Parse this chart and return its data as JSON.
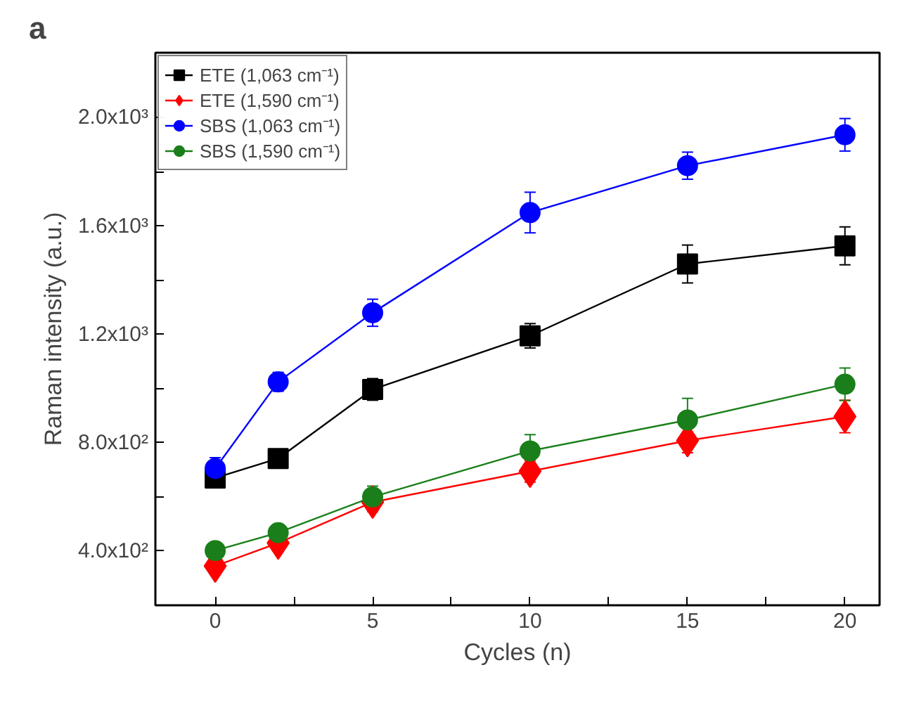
{
  "chart_data": {
    "type": "line",
    "title": "a",
    "xlabel": "Cycles (n)",
    "ylabel": "Raman intensity (a.u.)",
    "x": [
      0,
      2,
      5,
      10,
      15,
      20
    ],
    "series": [
      {
        "name": "ETE (1,063 cm⁻¹)",
        "color": "#000000",
        "marker": "square",
        "values": [
          670,
          742,
          997,
          1195,
          1460,
          1527
        ],
        "errors": [
          30,
          30,
          40,
          45,
          70,
          70
        ]
      },
      {
        "name": "ETE (1,590 cm⁻¹)",
        "color": "#ff0000",
        "marker": "diamond",
        "values": [
          345,
          430,
          581,
          695,
          808,
          897
        ],
        "errors": [
          30,
          30,
          35,
          40,
          45,
          60
        ]
      },
      {
        "name": "SBS (1,063 cm⁻¹)",
        "color": "#0000ff",
        "marker": "circle",
        "values": [
          705,
          1025,
          1280,
          1650,
          1823,
          1937
        ],
        "errors": [
          40,
          35,
          50,
          75,
          50,
          60
        ]
      },
      {
        "name": "SBS (1,590 cm⁻¹)",
        "color": "#1a7f1a",
        "marker": "circle",
        "values": [
          402,
          468,
          600,
          770,
          884,
          1016
        ],
        "errors": [
          30,
          30,
          40,
          60,
          80,
          60
        ]
      }
    ],
    "xlim": [
      -1.9,
      21.1
    ],
    "ylim": [
      200,
      2240
    ],
    "xticks": [
      0,
      {
        "value": 2.5,
        "label": null
      },
      5,
      {
        "value": 7.5,
        "label": null
      },
      10,
      {
        "value": 12.5,
        "label": null
      },
      15,
      {
        "value": 17.5,
        "label": null
      },
      20
    ],
    "yticks": [
      {
        "value": 400,
        "label": "4.0x10²"
      },
      {
        "value": 600,
        "label": null
      },
      {
        "value": 800,
        "label": "8.0x10²"
      },
      {
        "value": 1000,
        "label": null
      },
      {
        "value": 1200,
        "label": "1.2x10³"
      },
      {
        "value": 1400,
        "label": null
      },
      {
        "value": 1600,
        "label": "1.6x10³"
      },
      {
        "value": 1800,
        "label": null
      },
      {
        "value": 2000,
        "label": "2.0x10³"
      }
    ],
    "grid": false,
    "legend": "top left",
    "line_style": "solid"
  }
}
